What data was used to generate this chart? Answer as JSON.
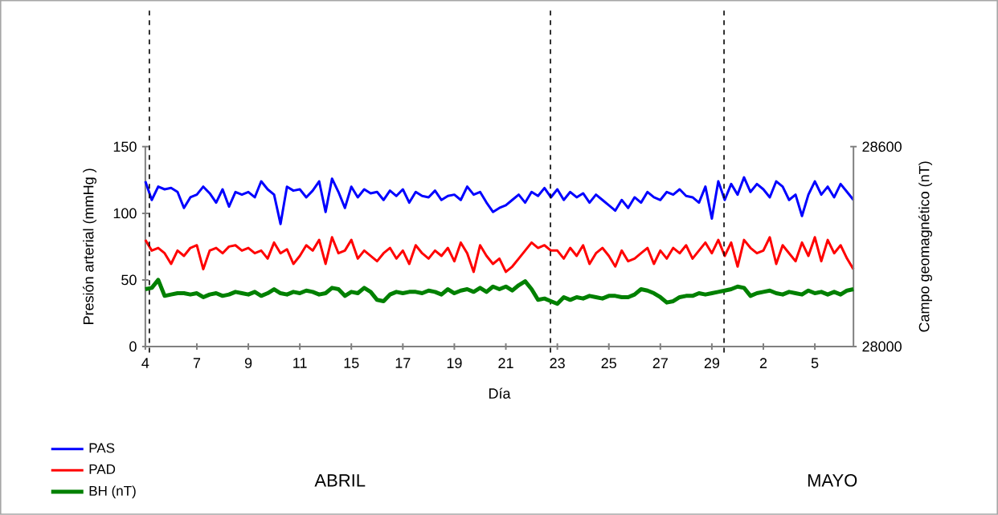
{
  "chart_data": {
    "type": "line",
    "xlabel": "Día",
    "ylabel": "Presión arterial (mmHg  )",
    "y2label": "Campo geomagnético (nT)",
    "categories": [
      "4",
      null,
      null,
      null,
      null,
      null,
      null,
      null,
      "7",
      null,
      null,
      null,
      null,
      null,
      null,
      null,
      "9",
      null,
      null,
      null,
      null,
      null,
      null,
      null,
      "11",
      null,
      null,
      null,
      null,
      null,
      null,
      null,
      "15",
      null,
      null,
      null,
      null,
      null,
      null,
      null,
      "17",
      null,
      null,
      null,
      null,
      null,
      null,
      null,
      "19",
      null,
      null,
      null,
      null,
      null,
      null,
      null,
      "21",
      null,
      null,
      null,
      null,
      null,
      null,
      null,
      "23",
      null,
      null,
      null,
      null,
      null,
      null,
      null,
      "25",
      null,
      null,
      null,
      null,
      null,
      null,
      null,
      "27",
      null,
      null,
      null,
      null,
      null,
      null,
      null,
      "29",
      null,
      null,
      null,
      null,
      null,
      null,
      null,
      "2",
      null,
      null,
      null,
      null,
      null,
      null,
      null,
      "5",
      null,
      null,
      null,
      null,
      null,
      null
    ],
    "ylim": [
      0,
      150
    ],
    "yticks": [
      0,
      50,
      100,
      150
    ],
    "y2lim": [
      28000,
      28600
    ],
    "y2ticks": [
      28000,
      28600
    ],
    "legend": "bottom left",
    "marker": "none",
    "line_style": "solid",
    "series": [
      {
        "name": "PAS",
        "color": "#0000ff",
        "values": [
          124,
          110,
          120,
          118,
          119,
          116,
          104,
          112,
          114,
          120,
          115,
          108,
          118,
          105,
          116,
          114,
          116,
          112,
          124,
          118,
          114,
          92,
          120,
          117,
          118,
          112,
          117,
          124,
          101,
          126,
          116,
          104,
          120,
          112,
          118,
          115,
          116,
          110,
          117,
          113,
          118,
          108,
          116,
          113,
          112,
          117,
          110,
          113,
          114,
          110,
          120,
          114,
          116,
          108,
          101,
          104,
          106,
          110,
          114,
          108,
          116,
          113,
          119,
          112,
          118,
          110,
          116,
          112,
          115,
          108,
          114,
          110,
          106,
          102,
          110,
          104,
          112,
          108,
          116,
          112,
          110,
          116,
          114,
          118,
          113,
          112,
          108,
          120,
          96,
          124,
          110,
          122,
          114,
          127,
          116,
          122,
          118,
          112,
          124,
          120,
          110,
          114,
          98,
          114,
          124,
          114,
          120,
          112,
          122,
          116,
          110
        ]
      },
      {
        "name": "PAD",
        "color": "#ff0000",
        "values": [
          80,
          72,
          74,
          70,
          62,
          72,
          68,
          74,
          76,
          58,
          72,
          74,
          70,
          75,
          76,
          72,
          74,
          70,
          72,
          66,
          78,
          70,
          73,
          62,
          68,
          76,
          72,
          80,
          62,
          82,
          70,
          72,
          80,
          66,
          72,
          68,
          64,
          70,
          74,
          66,
          72,
          62,
          76,
          70,
          66,
          72,
          68,
          74,
          64,
          78,
          70,
          56,
          76,
          68,
          62,
          66,
          56,
          60,
          66,
          72,
          78,
          74,
          76,
          72,
          72,
          66,
          74,
          68,
          76,
          62,
          70,
          74,
          68,
          60,
          72,
          64,
          66,
          70,
          74,
          62,
          72,
          66,
          74,
          70,
          76,
          66,
          72,
          78,
          70,
          80,
          68,
          78,
          60,
          80,
          74,
          70,
          72,
          82,
          62,
          76,
          70,
          64,
          78,
          68,
          82,
          64,
          80,
          70,
          76,
          66,
          58
        ]
      },
      {
        "name": "BH (nT)",
        "color": "#008000",
        "axis": "y2",
        "values": [
          28172,
          28176,
          28200,
          28152,
          28156,
          28160,
          28160,
          28156,
          28160,
          28148,
          28156,
          28160,
          28152,
          28156,
          28164,
          28160,
          28156,
          28164,
          28152,
          28160,
          28172,
          28160,
          28156,
          28164,
          28160,
          28168,
          28164,
          28156,
          28160,
          28176,
          28172,
          28152,
          28164,
          28160,
          28176,
          28164,
          28140,
          28136,
          28156,
          28164,
          28160,
          28164,
          28164,
          28160,
          28168,
          28164,
          28156,
          28172,
          28160,
          28168,
          28172,
          28164,
          28176,
          28164,
          28180,
          28172,
          28180,
          28168,
          28184,
          28196,
          28172,
          28140,
          28144,
          28136,
          28128,
          28148,
          28140,
          28148,
          28144,
          28152,
          28148,
          28144,
          28152,
          28152,
          28148,
          28148,
          28156,
          28172,
          28168,
          28160,
          28148,
          28132,
          28136,
          28148,
          28152,
          28152,
          28160,
          28156,
          28160,
          28164,
          28168,
          28172,
          28180,
          28176,
          28152,
          28160,
          28164,
          28168,
          28160,
          28156,
          28164,
          28160,
          28156,
          28168,
          28160,
          28164,
          28156,
          28164,
          28156,
          28168,
          28172
        ]
      }
    ],
    "annotations": [
      "ABRIL",
      "MAYO"
    ]
  }
}
